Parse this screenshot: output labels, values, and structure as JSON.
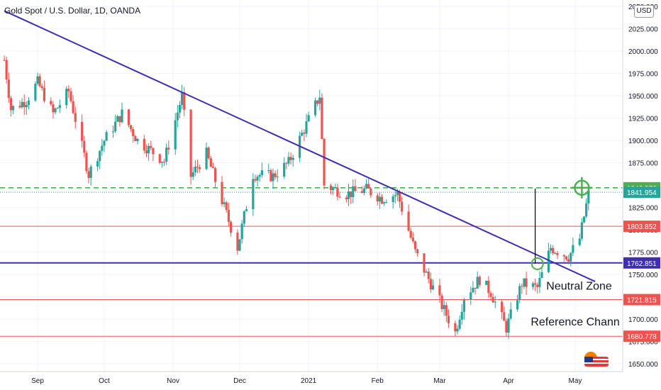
{
  "header": {
    "title": "Gold Spot / U.S. Dollar, 1D, OANDA",
    "currency": "USD"
  },
  "chart_data": {
    "type": "candlestick",
    "title": "Gold Spot / U.S. Dollar, 1D, OANDA",
    "ylim": [
      1640,
      2050
    ],
    "y_ticks": [
      1650,
      1675,
      1700,
      1725,
      1750,
      1775,
      1800,
      1825,
      1850,
      1875,
      1900,
      1925,
      1950,
      1975,
      2000,
      2025,
      2050
    ],
    "y_tick_labels": [
      "1650.000",
      "1675.000",
      "1700.000",
      "1725.000",
      "1750.000",
      "1775.000",
      "1800.000",
      "1825.000",
      "1850.000",
      "1875.000",
      "1900.000",
      "1925.000",
      "1950.000",
      "1975.000",
      "2000.000",
      "2025.000",
      "2050.000"
    ],
    "x_range": [
      "2020-08-17",
      "2021-05-10"
    ],
    "x_ticks": [
      {
        "date": "2020-09-01",
        "label": "Sep"
      },
      {
        "date": "2020-10-01",
        "label": "Oct"
      },
      {
        "date": "2020-11-01",
        "label": "Nov"
      },
      {
        "date": "2020-12-01",
        "label": "Dec"
      },
      {
        "date": "2021-01-01",
        "label": "2021"
      },
      {
        "date": "2021-02-01",
        "label": "Feb"
      },
      {
        "date": "2021-03-01",
        "label": "Mar"
      },
      {
        "date": "2021-04-01",
        "label": "Apr"
      },
      {
        "date": "2021-05-01",
        "label": "May"
      }
    ],
    "series_anchor_path": [
      [
        "2020-08-17",
        1990
      ],
      [
        "2020-08-20",
        1935
      ],
      [
        "2020-08-27",
        1945
      ],
      [
        "2020-09-01",
        1965
      ],
      [
        "2020-09-08",
        1930
      ],
      [
        "2020-09-15",
        1955
      ],
      [
        "2020-09-24",
        1862
      ],
      [
        "2020-10-01",
        1900
      ],
      [
        "2020-10-09",
        1930
      ],
      [
        "2020-10-16",
        1900
      ],
      [
        "2020-10-28",
        1877
      ],
      [
        "2020-11-05",
        1950
      ],
      [
        "2020-11-09",
        1860
      ],
      [
        "2020-11-16",
        1885
      ],
      [
        "2020-11-30",
        1780
      ],
      [
        "2020-12-07",
        1862
      ],
      [
        "2020-12-16",
        1860
      ],
      [
        "2020-12-23",
        1875
      ],
      [
        "2021-01-06",
        1950
      ],
      [
        "2021-01-08",
        1850
      ],
      [
        "2021-01-18",
        1840
      ],
      [
        "2021-01-27",
        1845
      ],
      [
        "2021-02-03",
        1835
      ],
      [
        "2021-02-10",
        1840
      ],
      [
        "2021-02-18",
        1775
      ],
      [
        "2021-02-26",
        1735
      ],
      [
        "2021-03-08",
        1685
      ],
      [
        "2021-03-12",
        1725
      ],
      [
        "2021-03-19",
        1745
      ],
      [
        "2021-03-24",
        1730
      ],
      [
        "2021-03-31",
        1690
      ],
      [
        "2021-04-07",
        1740
      ],
      [
        "2021-04-14",
        1735
      ],
      [
        "2021-04-20",
        1780
      ],
      [
        "2021-04-28",
        1770
      ],
      [
        "2021-05-03",
        1790
      ],
      [
        "2021-05-07",
        1840
      ]
    ],
    "horizontal_levels": [
      {
        "value": 1846.976,
        "label": "1846.976",
        "color": "#4caf50",
        "style": "dashed"
      },
      {
        "value": 1841.954,
        "label": "1841.954",
        "color": "#26a69a",
        "style": "dotted"
      },
      {
        "value": 1803.852,
        "label": "1803.852",
        "color": "#ef5350",
        "style": "solid"
      },
      {
        "value": 1762.851,
        "label": "1762.851",
        "color": "#3f2db5",
        "style": "solid"
      },
      {
        "value": 1721.815,
        "label": "1721.815",
        "color": "#ef5350",
        "style": "solid"
      },
      {
        "value": 1680.778,
        "label": "1680.778",
        "color": "#ef5350",
        "style": "solid"
      }
    ],
    "trendline": {
      "start": [
        "2020-08-17",
        2045
      ],
      "end": [
        "2021-05-10",
        1742
      ],
      "color": "#3f2db5"
    },
    "annotations": [
      {
        "text": "Neutral Zone",
        "date": "2021-04-18",
        "value": 1733
      },
      {
        "text": "Reference Chann",
        "date": "2021-04-11",
        "value": 1693
      }
    ],
    "markers": [
      {
        "type": "circle",
        "date": "2021-04-14",
        "value": 1762
      },
      {
        "type": "crosshair",
        "date": "2021-05-04",
        "value": 1847
      }
    ],
    "vertical_marker": {
      "date": "2021-04-13",
      "from": 1762,
      "to": 1846
    },
    "colors": {
      "up": "#26a69a",
      "down": "#ef5350",
      "grid": "#f0f3fa",
      "axis_text": "#131722"
    },
    "grid": true
  }
}
